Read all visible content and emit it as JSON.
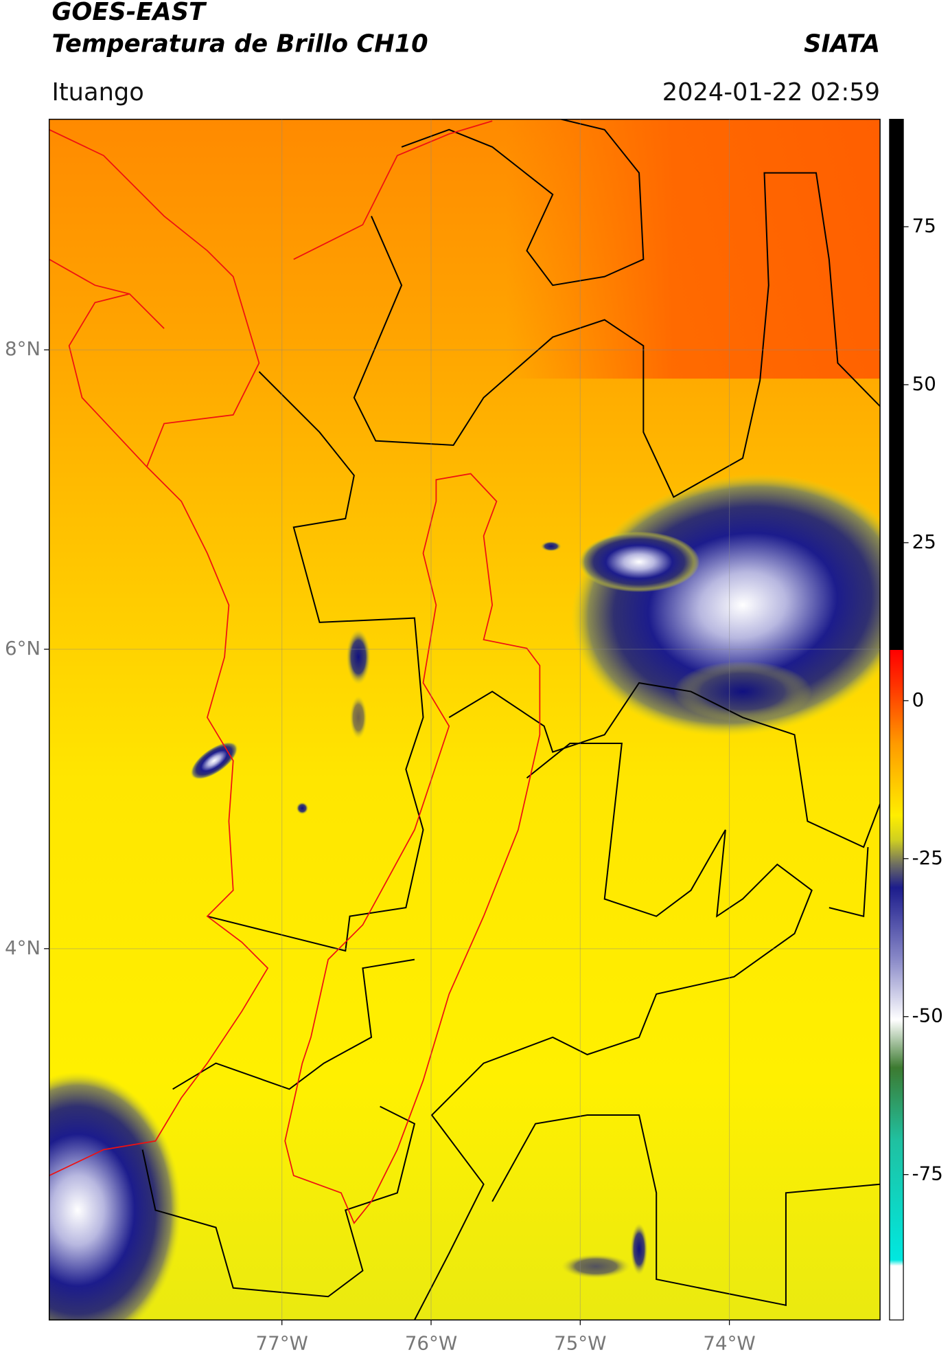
{
  "header": {
    "title": "GOES-EAST",
    "subtitle": "Temperatura de Brillo CH10",
    "agency": "SIATA",
    "location": "Ituango",
    "datetime": "2024-01-22 02:59"
  },
  "map": {
    "xlim": [
      -78.56,
      -72.99
    ],
    "ylim": [
      1.52,
      9.54
    ],
    "xticks": [
      {
        "value": -77,
        "label": "77°W"
      },
      {
        "value": -76,
        "label": "76°W"
      },
      {
        "value": -75,
        "label": "75°W"
      },
      {
        "value": -74,
        "label": "74°W"
      }
    ],
    "yticks": [
      {
        "value": 4,
        "label": "4°N"
      },
      {
        "value": 6,
        "label": "6°N"
      },
      {
        "value": 8,
        "label": "8°N"
      }
    ]
  },
  "colorbar": {
    "range": [
      -98,
      92
    ],
    "ticks": [
      -75,
      -50,
      -25,
      0,
      25,
      50,
      75
    ]
  }
}
